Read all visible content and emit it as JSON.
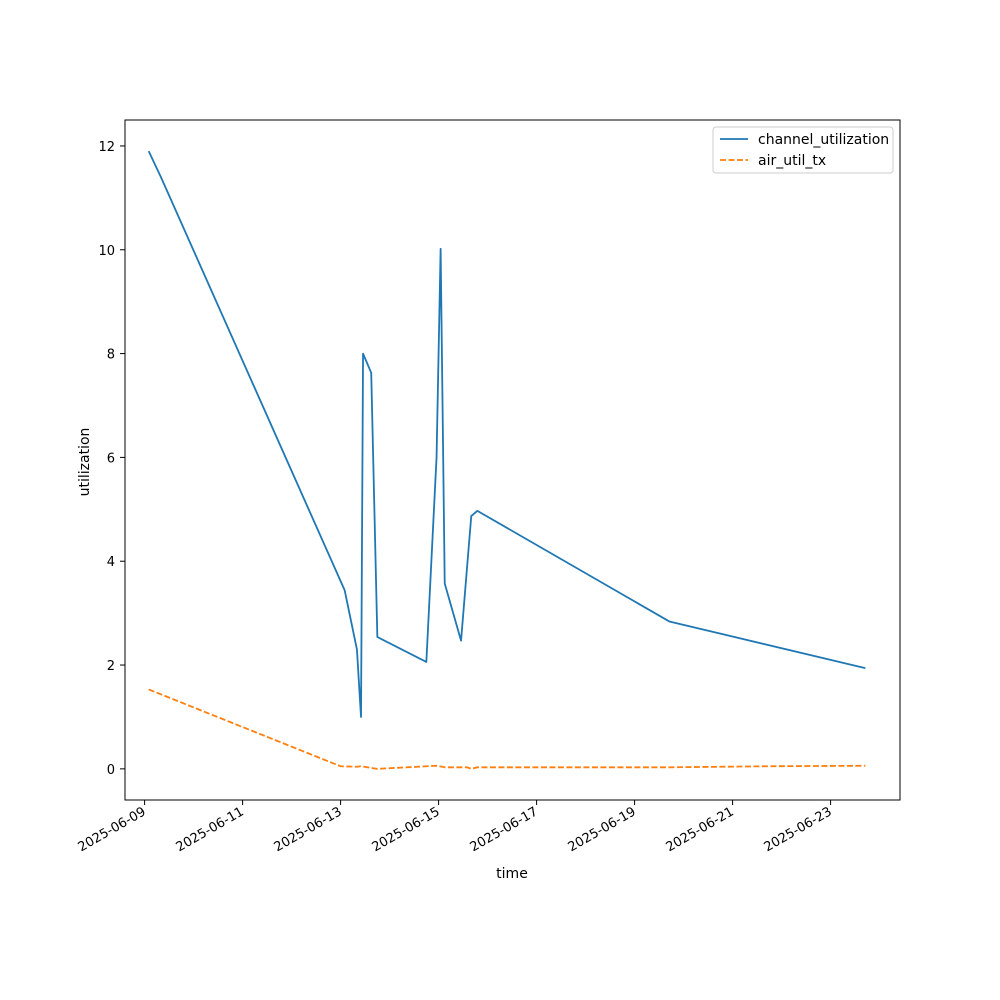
{
  "chart_data": {
    "type": "line",
    "title": "",
    "xlabel": "time",
    "ylabel": "utilization",
    "xlim": [
      "2025-06-08T14:24:00",
      "2025-06-24T10:00:00"
    ],
    "ylim": [
      -0.6,
      12.5
    ],
    "grid": false,
    "legend_position": "top-right",
    "x_ticks": [
      "2025-06-09",
      "2025-06-11",
      "2025-06-13",
      "2025-06-15",
      "2025-06-17",
      "2025-06-19",
      "2025-06-21",
      "2025-06-23"
    ],
    "y_ticks": [
      0,
      2,
      4,
      6,
      8,
      10,
      12
    ],
    "series": [
      {
        "name": "channel_utilization",
        "color": "#1f77b4",
        "dash": "solid",
        "points": [
          [
            "2025-06-09T02:00:00",
            11.9
          ],
          [
            "2025-06-09T08:00:00",
            11.4
          ],
          [
            "2025-06-13T02:00:00",
            3.44
          ],
          [
            "2025-06-13T08:00:00",
            2.3
          ],
          [
            "2025-06-13T10:00:00",
            1.0
          ],
          [
            "2025-06-13T11:00:00",
            8.0
          ],
          [
            "2025-06-13T15:00:00",
            7.63
          ],
          [
            "2025-06-13T18:00:00",
            2.54
          ],
          [
            "2025-06-14T18:00:00",
            2.06
          ],
          [
            "2025-06-14T23:00:00",
            6.0
          ],
          [
            "2025-06-15T01:00:00",
            10.02
          ],
          [
            "2025-06-15T03:00:00",
            3.57
          ],
          [
            "2025-06-15T11:00:00",
            2.47
          ],
          [
            "2025-06-15T16:00:00",
            4.87
          ],
          [
            "2025-06-15T19:00:00",
            4.97
          ],
          [
            "2025-06-19T17:00:00",
            2.84
          ],
          [
            "2025-06-23T17:00:00",
            1.94
          ]
        ]
      },
      {
        "name": "air_util_tx",
        "color": "#ff7f0e",
        "dash": "dashed",
        "points": [
          [
            "2025-06-09T02:00:00",
            1.53
          ],
          [
            "2025-06-13T00:00:00",
            0.05
          ],
          [
            "2025-06-13T08:00:00",
            0.04
          ],
          [
            "2025-06-13T10:00:00",
            0.05
          ],
          [
            "2025-06-13T18:00:00",
            0.0
          ],
          [
            "2025-06-14T23:00:00",
            0.06
          ],
          [
            "2025-06-15T03:00:00",
            0.03
          ],
          [
            "2025-06-15T14:00:00",
            0.03
          ],
          [
            "2025-06-15T16:00:00",
            0.0
          ],
          [
            "2025-06-15T19:00:00",
            0.03
          ],
          [
            "2025-06-19T17:00:00",
            0.03
          ],
          [
            "2025-06-21T17:00:00",
            0.05
          ],
          [
            "2025-06-23T17:00:00",
            0.06
          ]
        ]
      }
    ]
  }
}
